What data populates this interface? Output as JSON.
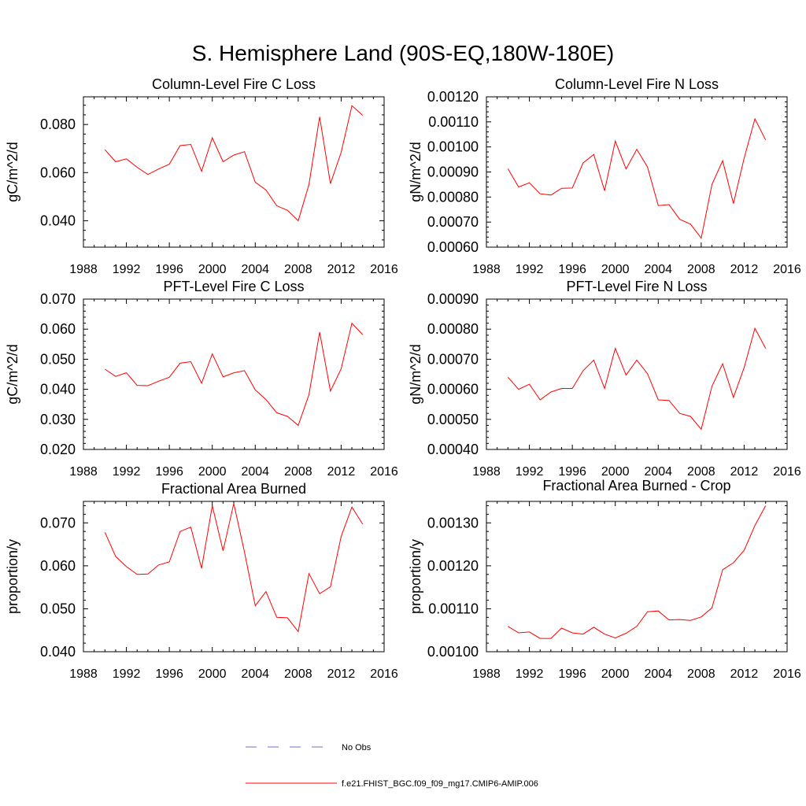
{
  "title": "S. Hemisphere Land (90S-EQ,180W-180E)",
  "colors": {
    "model": "#ff0000",
    "obs": "#6f6fcf",
    "axis": "#000000"
  },
  "legend": {
    "obs_label": "No Obs",
    "model_label": "f.e21.FHIST_BGC.f09_f09_mg17.CMIP6-AMIP.006"
  },
  "chart_data": [
    {
      "type": "line",
      "title": "Column-Level Fire C Loss",
      "ylabel": "gC/m^2/d",
      "xlim": [
        1988,
        2016
      ],
      "xticks": [
        "1988",
        "1992",
        "1996",
        "2000",
        "2004",
        "2008",
        "2012",
        "2016"
      ],
      "ylim": [
        0.029,
        0.0915
      ],
      "yticks": [
        "0.040",
        "0.060",
        "0.080"
      ],
      "x": [
        1990,
        1991,
        1992,
        1993,
        1994,
        1995,
        1996,
        1997,
        1998,
        1999,
        2000,
        2001,
        2002,
        2003,
        2004,
        2005,
        2006,
        2007,
        2008,
        2009,
        2010,
        2011,
        2012,
        2013,
        2014
      ],
      "series": [
        {
          "name": "f.e21.FHIST_BGC.f09_f09_mg17.CMIP6-AMIP.006",
          "values": [
            0.0695,
            0.0645,
            0.0657,
            0.0622,
            0.0592,
            0.0615,
            0.0635,
            0.0712,
            0.0717,
            0.0605,
            0.0745,
            0.0645,
            0.0673,
            0.0687,
            0.056,
            0.0528,
            0.0462,
            0.0443,
            0.04,
            0.055,
            0.0832,
            0.0554,
            0.0684,
            0.0878,
            0.0838
          ]
        }
      ]
    },
    {
      "type": "line",
      "title": "Column-Level Fire N Loss",
      "ylabel": "gN/m^2/d",
      "xlim": [
        1988,
        2016
      ],
      "xticks": [
        "1988",
        "1992",
        "1996",
        "2000",
        "2004",
        "2008",
        "2012",
        "2016"
      ],
      "ylim": [
        0.0006,
        0.0012
      ],
      "yticks": [
        "0.00060",
        "0.00070",
        "0.00080",
        "0.00090",
        "0.00100",
        "0.00110",
        "0.00120"
      ],
      "x": [
        1990,
        1991,
        1992,
        1993,
        1994,
        1995,
        1996,
        1997,
        1998,
        1999,
        2000,
        2001,
        2002,
        2003,
        2004,
        2005,
        2006,
        2007,
        2008,
        2009,
        2010,
        2011,
        2012,
        2013,
        2014
      ],
      "series": [
        {
          "name": "f.e21.FHIST_BGC.f09_f09_mg17.CMIP6-AMIP.006",
          "values": [
            0.000913,
            0.00084,
            0.000857,
            0.000813,
            0.000808,
            0.000835,
            0.000836,
            0.000936,
            0.00097,
            0.000825,
            0.001023,
            0.000912,
            0.00099,
            0.00092,
            0.000766,
            0.00077,
            0.000711,
            0.000692,
            0.000636,
            0.00085,
            0.000945,
            0.000774,
            0.000955,
            0.001112,
            0.001028
          ]
        }
      ]
    },
    {
      "type": "line",
      "title": "PFT-Level Fire C Loss",
      "ylabel": "gC/m^2/d",
      "xlim": [
        1988,
        2016
      ],
      "xticks": [
        "1988",
        "1992",
        "1996",
        "2000",
        "2004",
        "2008",
        "2012",
        "2016"
      ],
      "ylim": [
        0.02,
        0.07
      ],
      "yticks": [
        "0.020",
        "0.030",
        "0.040",
        "0.050",
        "0.060",
        "0.070"
      ],
      "x": [
        1990,
        1991,
        1992,
        1993,
        1994,
        1995,
        1996,
        1997,
        1998,
        1999,
        2000,
        2001,
        2002,
        2003,
        2004,
        2005,
        2006,
        2007,
        2008,
        2009,
        2010,
        2011,
        2012,
        2013,
        2014
      ],
      "series": [
        {
          "name": "f.e21.FHIST_BGC.f09_f09_mg17.CMIP6-AMIP.006",
          "values": [
            0.0467,
            0.0443,
            0.0455,
            0.0413,
            0.0412,
            0.0427,
            0.044,
            0.0487,
            0.0492,
            0.042,
            0.0518,
            0.0441,
            0.0455,
            0.0462,
            0.0398,
            0.0366,
            0.0322,
            0.031,
            0.028,
            0.0382,
            0.059,
            0.0394,
            0.0468,
            0.062,
            0.0582
          ]
        }
      ]
    },
    {
      "type": "line",
      "title": "PFT-Level Fire N Loss",
      "ylabel": "gN/m^2/d",
      "xlim": [
        1988,
        2016
      ],
      "xticks": [
        "1988",
        "1992",
        "1996",
        "2000",
        "2004",
        "2008",
        "2012",
        "2016"
      ],
      "ylim": [
        0.0004,
        0.0009
      ],
      "yticks": [
        "0.00040",
        "0.00050",
        "0.00060",
        "0.00070",
        "0.00080",
        "0.00090"
      ],
      "x": [
        1990,
        1991,
        1992,
        1993,
        1994,
        1995,
        1996,
        1997,
        1998,
        1999,
        2000,
        2001,
        2002,
        2003,
        2004,
        2005,
        2006,
        2007,
        2008,
        2009,
        2010,
        2011,
        2012,
        2013,
        2014
      ],
      "series": [
        {
          "name": "f.e21.FHIST_BGC.f09_f09_mg17.CMIP6-AMIP.006",
          "values": [
            0.00064,
            0.0006,
            0.000617,
            0.000565,
            0.000591,
            0.000603,
            0.000603,
            0.000662,
            0.000697,
            0.000603,
            0.000736,
            0.000647,
            0.000697,
            0.000652,
            0.000565,
            0.000563,
            0.00052,
            0.00051,
            0.000467,
            0.00061,
            0.000685,
            0.000573,
            0.000672,
            0.000803,
            0.000736
          ]
        }
      ]
    },
    {
      "type": "line",
      "title": "Fractional Area Burned",
      "ylabel": "proportion/y",
      "xlim": [
        1988,
        2016
      ],
      "xticks": [
        "1988",
        "1992",
        "1996",
        "2000",
        "2004",
        "2008",
        "2012",
        "2016"
      ],
      "ylim": [
        0.04,
        0.075
      ],
      "yticks": [
        "0.040",
        "0.050",
        "0.060",
        "0.070"
      ],
      "x": [
        1990,
        1991,
        1992,
        1993,
        1994,
        1995,
        1996,
        1997,
        1998,
        1999,
        2000,
        2001,
        2002,
        2003,
        2004,
        2005,
        2006,
        2007,
        2008,
        2009,
        2010,
        2011,
        2012,
        2013,
        2014
      ],
      "series": [
        {
          "name": "f.e21.FHIST_BGC.f09_f09_mg17.CMIP6-AMIP.006",
          "values": [
            0.0678,
            0.0622,
            0.0598,
            0.058,
            0.0581,
            0.0602,
            0.0609,
            0.068,
            0.069,
            0.0594,
            0.074,
            0.0635,
            0.0745,
            0.0632,
            0.0507,
            0.054,
            0.048,
            0.0479,
            0.0447,
            0.0582,
            0.0535,
            0.0551,
            0.0668,
            0.0737,
            0.0697
          ]
        }
      ]
    },
    {
      "type": "line",
      "title": "Fractional Area Burned - Crop",
      "ylabel": "proportion/y",
      "xlim": [
        1988,
        2016
      ],
      "xticks": [
        "1988",
        "1992",
        "1996",
        "2000",
        "2004",
        "2008",
        "2012",
        "2016"
      ],
      "ylim": [
        0.001,
        0.00135
      ],
      "yticks": [
        "0.00100",
        "0.00110",
        "0.00120",
        "0.00130"
      ],
      "x": [
        1990,
        1991,
        1992,
        1993,
        1994,
        1995,
        1996,
        1997,
        1998,
        1999,
        2000,
        2001,
        2002,
        2003,
        2004,
        2005,
        2006,
        2007,
        2008,
        2009,
        2010,
        2011,
        2012,
        2013,
        2014
      ],
      "series": [
        {
          "name": "f.e21.FHIST_BGC.f09_f09_mg17.CMIP6-AMIP.006",
          "values": [
            0.001059,
            0.001044,
            0.001046,
            0.001031,
            0.001031,
            0.001055,
            0.001044,
            0.001041,
            0.001057,
            0.001041,
            0.001032,
            0.001043,
            0.001059,
            0.001093,
            0.001095,
            0.001074,
            0.001075,
            0.001073,
            0.001081,
            0.001102,
            0.001191,
            0.001207,
            0.001236,
            0.001294,
            0.00134
          ]
        }
      ]
    }
  ]
}
